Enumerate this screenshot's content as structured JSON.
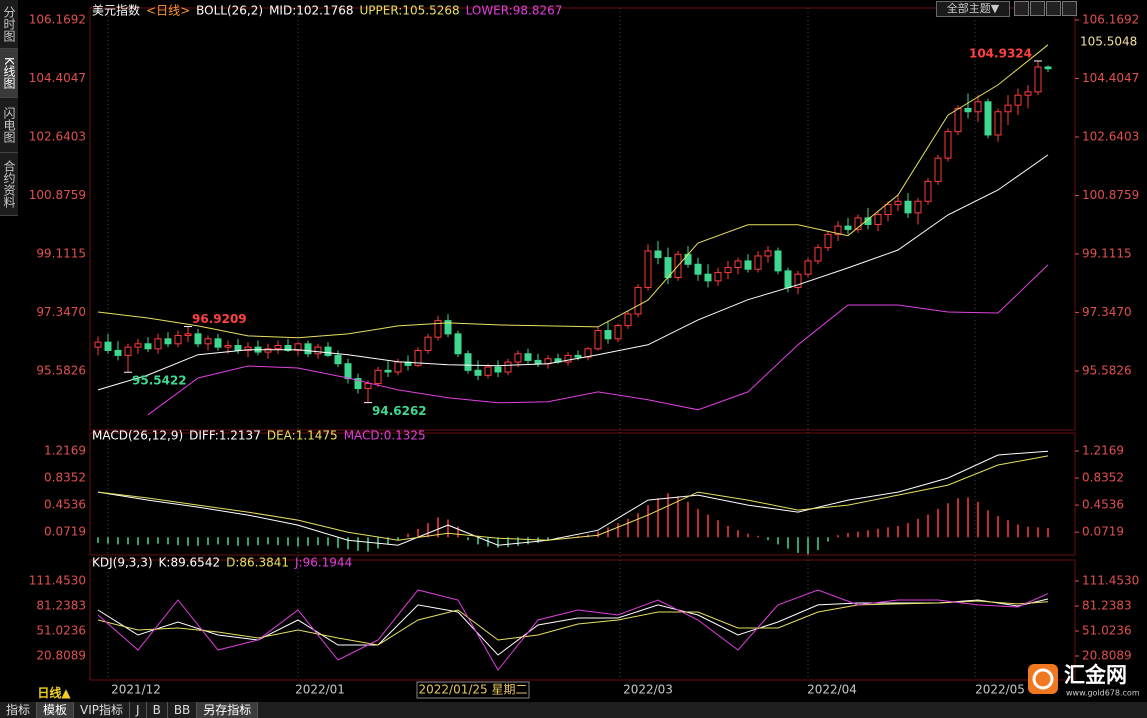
{
  "sidebar": [
    "分时图",
    "K线图",
    "闪电图",
    "合约资料"
  ],
  "theme_button": "全部主题▼",
  "period": "日线▲",
  "bottom_tabs": [
    "指标",
    "模板",
    "VIP指标",
    "J",
    "B",
    "BB",
    "另存指标"
  ],
  "logo": {
    "name": "汇金网",
    "url": "www.gold678.com"
  },
  "x_labels": [
    "2021/12",
    "2022/01",
    "2022/03",
    "2022/04",
    "2022/05"
  ],
  "crosshair_date": "2022/01/25 星期二",
  "chart_data": [
    {
      "type": "candlestick",
      "legend": [
        {
          "text": "美元指数",
          "color": "#ffffff"
        },
        {
          "text": "<日线>",
          "color": "#ff9933"
        },
        {
          "text": "BOLL(26,2)",
          "color": "#ffffff"
        },
        {
          "text": "MID:102.1768",
          "color": "#ffffff"
        },
        {
          "text": "UPPER:105.5268",
          "color": "#e8e060"
        },
        {
          "text": "LOWER:98.8267",
          "color": "#e040e0"
        }
      ],
      "up_color": "#ff3c3c",
      "down_color": "#40d890",
      "xlim": [
        -0.8,
        97.7
      ],
      "ylim": [
        93.8,
        106.53
      ],
      "yticks": [
        106.1692,
        104.4047,
        102.6403,
        100.8759,
        99.1115,
        {
          "value": 97.347,
          "label": "97.3470"
        },
        95.5826
      ],
      "last_price_label": 105.5048,
      "candles": [
        [
          96.3,
          96.62,
          96.05,
          96.45
        ],
        [
          96.45,
          96.7,
          96.1,
          96.2
        ],
        [
          96.2,
          96.48,
          95.9,
          96.05
        ],
        [
          96.05,
          96.4,
          95.54,
          96.3
        ],
        [
          96.3,
          96.55,
          96.1,
          96.4
        ],
        [
          96.4,
          96.6,
          96.15,
          96.25
        ],
        [
          96.25,
          96.7,
          96.1,
          96.55
        ],
        [
          96.55,
          96.75,
          96.3,
          96.4
        ],
        [
          96.4,
          96.8,
          96.3,
          96.65
        ],
        [
          96.65,
          96.92,
          96.45,
          96.7
        ],
        [
          96.7,
          96.85,
          96.3,
          96.4
        ],
        [
          96.4,
          96.65,
          96.2,
          96.55
        ],
        [
          96.55,
          96.7,
          96.2,
          96.3
        ],
        [
          96.3,
          96.5,
          96.1,
          96.35
        ],
        [
          96.35,
          96.55,
          96.1,
          96.2
        ],
        [
          96.2,
          96.45,
          96.0,
          96.3
        ],
        [
          96.3,
          96.5,
          96.05,
          96.15
        ],
        [
          96.15,
          96.4,
          95.95,
          96.25
        ],
        [
          96.25,
          96.5,
          96.1,
          96.35
        ],
        [
          96.35,
          96.55,
          96.15,
          96.2
        ],
        [
          96.2,
          96.45,
          96.05,
          96.4
        ],
        [
          96.4,
          96.5,
          96.0,
          96.1
        ],
        [
          96.1,
          96.4,
          95.95,
          96.3
        ],
        [
          96.3,
          96.45,
          96.0,
          96.05
        ],
        [
          96.05,
          96.2,
          95.7,
          95.8
        ],
        [
          95.8,
          95.95,
          95.2,
          95.35
        ],
        [
          95.35,
          95.5,
          94.9,
          95.05
        ],
        [
          95.05,
          95.3,
          94.63,
          95.2
        ],
        [
          95.2,
          95.7,
          95.1,
          95.6
        ],
        [
          95.6,
          95.9,
          95.4,
          95.55
        ],
        [
          95.55,
          95.95,
          95.45,
          95.85
        ],
        [
          95.85,
          96.05,
          95.6,
          95.75
        ],
        [
          95.75,
          96.3,
          95.7,
          96.2
        ],
        [
          96.2,
          96.7,
          96.1,
          96.6
        ],
        [
          96.6,
          97.25,
          96.5,
          97.1
        ],
        [
          97.1,
          97.3,
          96.6,
          96.7
        ],
        [
          96.7,
          96.8,
          96.0,
          96.1
        ],
        [
          96.1,
          96.2,
          95.5,
          95.6
        ],
        [
          95.6,
          95.9,
          95.3,
          95.45
        ],
        [
          95.45,
          95.8,
          95.35,
          95.7
        ],
        [
          95.7,
          95.9,
          95.4,
          95.55
        ],
        [
          95.55,
          95.95,
          95.45,
          95.85
        ],
        [
          95.85,
          96.2,
          95.7,
          96.1
        ],
        [
          96.1,
          96.25,
          95.8,
          95.9
        ],
        [
          95.9,
          96.1,
          95.7,
          95.8
        ],
        [
          95.8,
          96.05,
          95.65,
          95.95
        ],
        [
          95.95,
          96.1,
          95.8,
          95.85
        ],
        [
          95.85,
          96.15,
          95.75,
          96.05
        ],
        [
          96.05,
          96.2,
          95.9,
          96.0
        ],
        [
          96.0,
          96.3,
          95.9,
          96.25
        ],
        [
          96.25,
          96.9,
          96.2,
          96.8
        ],
        [
          96.8,
          97.1,
          96.4,
          96.55
        ],
        [
          96.55,
          97.0,
          96.45,
          96.95
        ],
        [
          96.95,
          97.4,
          96.85,
          97.3
        ],
        [
          97.3,
          98.2,
          97.2,
          98.1
        ],
        [
          98.1,
          99.4,
          98.0,
          99.2
        ],
        [
          99.2,
          99.5,
          98.8,
          99.0
        ],
        [
          99.0,
          99.3,
          98.2,
          98.4
        ],
        [
          98.4,
          99.2,
          98.3,
          99.1
        ],
        [
          99.1,
          99.35,
          98.7,
          98.8
        ],
        [
          98.8,
          99.0,
          98.3,
          98.5
        ],
        [
          98.5,
          98.8,
          98.1,
          98.3
        ],
        [
          98.3,
          98.7,
          98.15,
          98.55
        ],
        [
          98.55,
          98.9,
          98.35,
          98.7
        ],
        [
          98.7,
          99.0,
          98.5,
          98.9
        ],
        [
          98.9,
          99.1,
          98.55,
          98.65
        ],
        [
          98.65,
          99.2,
          98.55,
          99.05
        ],
        [
          99.05,
          99.35,
          98.85,
          99.2
        ],
        [
          99.2,
          99.3,
          98.5,
          98.6
        ],
        [
          98.6,
          98.7,
          97.95,
          98.1
        ],
        [
          98.1,
          98.6,
          97.9,
          98.5
        ],
        [
          98.5,
          99.0,
          98.4,
          98.9
        ],
        [
          98.9,
          99.4,
          98.8,
          99.3
        ],
        [
          99.3,
          99.8,
          99.2,
          99.7
        ],
        [
          99.7,
          100.1,
          99.5,
          99.95
        ],
        [
          99.95,
          100.2,
          99.7,
          99.85
        ],
        [
          99.85,
          100.3,
          99.75,
          100.2
        ],
        [
          100.2,
          100.5,
          99.85,
          100.0
        ],
        [
          100.0,
          100.4,
          99.8,
          100.3
        ],
        [
          100.3,
          100.7,
          100.1,
          100.6
        ],
        [
          100.6,
          100.9,
          100.4,
          100.7
        ],
        [
          100.7,
          100.95,
          100.2,
          100.35
        ],
        [
          100.35,
          100.8,
          100.0,
          100.7
        ],
        [
          100.7,
          101.4,
          100.6,
          101.3
        ],
        [
          101.3,
          102.1,
          101.2,
          102.0
        ],
        [
          102.0,
          102.9,
          101.9,
          102.8
        ],
        [
          102.8,
          103.6,
          102.7,
          103.5
        ],
        [
          103.5,
          103.95,
          103.2,
          103.4
        ],
        [
          103.4,
          103.9,
          103.1,
          103.7
        ],
        [
          103.7,
          103.8,
          102.6,
          102.7
        ],
        [
          102.7,
          103.5,
          102.5,
          103.4
        ],
        [
          103.4,
          103.9,
          103.0,
          103.6
        ],
        [
          103.6,
          104.1,
          103.3,
          103.9
        ],
        [
          103.9,
          104.2,
          103.5,
          104.0
        ],
        [
          104.0,
          104.93,
          103.9,
          104.75
        ],
        [
          104.75,
          104.8,
          104.6,
          104.7
        ]
      ],
      "x": [
        0,
        5,
        10,
        15,
        20,
        25,
        30,
        35,
        40,
        45,
        50,
        55,
        60,
        65,
        70,
        75,
        80,
        85,
        90,
        95
      ],
      "series": [
        {
          "color": "#e8e060",
          "values": [
            97.36,
            97.18,
            96.94,
            96.64,
            96.58,
            96.7,
            96.94,
            97.03,
            96.97,
            96.94,
            96.91,
            97.72,
            99.44,
            99.99,
            99.99,
            99.66,
            100.89,
            103.3,
            104.21,
            105.42
          ]
        },
        {
          "color": "#ffffff",
          "values": [
            95.01,
            95.46,
            96.07,
            96.22,
            96.22,
            96.07,
            95.86,
            95.77,
            95.74,
            95.8,
            96.07,
            96.37,
            97.12,
            97.73,
            98.18,
            98.69,
            99.23,
            100.29,
            101.04,
            102.1
          ]
        },
        {
          "color": "#e040e0",
          "values": [
            null,
            94.26,
            95.37,
            95.73,
            95.67,
            95.37,
            95.01,
            94.77,
            94.62,
            94.65,
            94.95,
            94.71,
            94.41,
            94.95,
            96.37,
            97.57,
            97.57,
            97.36,
            97.33,
            98.78
          ]
        }
      ],
      "high_labels": [
        {
          "x": 9,
          "value": 96.9209
        },
        {
          "x": 94,
          "value": 104.9324
        }
      ],
      "low_labels": [
        {
          "x": 3,
          "value": 95.5422
        },
        {
          "x": 27,
          "value": 94.6262
        }
      ]
    },
    {
      "type": "macd",
      "legend": [
        {
          "text": "MACD(26,12,9)",
          "color": "#ffffff"
        },
        {
          "text": "DIFF:1.2137",
          "color": "#ffffff"
        },
        {
          "text": "DEA:1.1475",
          "color": "#e8e060"
        },
        {
          "text": "MACD:0.1325",
          "color": "#e040e0"
        }
      ],
      "xlim": [
        -0.8,
        97.7
      ],
      "ylim": [
        -0.25,
        1.47
      ],
      "yticks": [
        1.2169,
        0.8352,
        0.4536,
        0.0719
      ],
      "up_color": "#ff3c3c",
      "down_color": "#40d890",
      "histogram": [
        -0.08,
        -0.09,
        -0.1,
        -0.1,
        -0.11,
        -0.1,
        -0.09,
        -0.1,
        -0.11,
        -0.12,
        -0.12,
        -0.11,
        -0.1,
        -0.11,
        -0.12,
        -0.12,
        -0.11,
        -0.1,
        -0.11,
        -0.12,
        -0.13,
        -0.12,
        -0.11,
        -0.12,
        -0.15,
        -0.17,
        -0.19,
        -0.2,
        -0.16,
        -0.1,
        -0.04,
        0.05,
        0.12,
        0.2,
        0.28,
        0.25,
        0.15,
        -0.04,
        -0.1,
        -0.13,
        -0.15,
        -0.14,
        -0.12,
        -0.1,
        -0.08,
        -0.05,
        -0.02,
        0.01,
        0.02,
        0.04,
        0.08,
        0.14,
        0.2,
        0.26,
        0.34,
        0.45,
        0.55,
        0.62,
        0.58,
        0.5,
        0.4,
        0.32,
        0.24,
        0.16,
        0.1,
        0.05,
        0.02,
        -0.04,
        -0.1,
        -0.16,
        -0.22,
        -0.24,
        -0.18,
        -0.06,
        0.03,
        0.06,
        0.08,
        0.1,
        0.12,
        0.14,
        0.16,
        0.2,
        0.26,
        0.32,
        0.4,
        0.48,
        0.55,
        0.56,
        0.5,
        0.38,
        0.3,
        0.24,
        0.18,
        0.15,
        0.14,
        0.1325
      ],
      "x": [
        0,
        5,
        10,
        15,
        20,
        25,
        30,
        35,
        40,
        45,
        50,
        55,
        60,
        65,
        70,
        75,
        80,
        85,
        90,
        95
      ],
      "series": [
        {
          "color": "#ffffff",
          "values": [
            0.637,
            0.524,
            0.425,
            0.312,
            0.171,
            -0.041,
            -0.112,
            0.171,
            -0.112,
            -0.041,
            0.1,
            0.524,
            0.595,
            0.454,
            0.355,
            0.524,
            0.637,
            0.835,
            1.16,
            1.2137
          ]
        },
        {
          "color": "#e8e060",
          "values": [
            0.637,
            0.553,
            0.454,
            0.355,
            0.242,
            0.072,
            -0.041,
            0.058,
            -0.013,
            -0.041,
            0.029,
            0.312,
            0.637,
            0.524,
            0.383,
            0.454,
            0.595,
            0.736,
            1.019,
            1.1475
          ]
        }
      ]
    },
    {
      "type": "line",
      "legend": [
        {
          "text": "KDJ(9,3,3)",
          "color": "#ffffff"
        },
        {
          "text": "K:89.6542",
          "color": "#ffffff"
        },
        {
          "text": "D:86.3841",
          "color": "#e8e060"
        },
        {
          "text": "J:96.1944",
          "color": "#e040e0"
        }
      ],
      "xlim": [
        -0.8,
        97.7
      ],
      "ylim": [
        -8.2,
        136.8
      ],
      "yticks": [
        {
          "value": 111.453,
          "label": "111.4530"
        },
        81.2383,
        51.0236,
        20.8089
      ],
      "x": [
        0,
        4,
        8,
        12,
        16,
        20,
        24,
        28,
        32,
        36,
        40,
        44,
        48,
        52,
        56,
        60,
        64,
        68,
        72,
        76,
        80,
        84,
        88,
        92,
        95
      ],
      "series": [
        {
          "color": "#ffffff",
          "values": [
            76.4,
            46.2,
            61.9,
            46.2,
            40.1,
            64.3,
            34.1,
            34.1,
            82.5,
            74.0,
            22.0,
            58.3,
            66.7,
            66.7,
            82.5,
            70.4,
            46.2,
            61.9,
            82.5,
            84.9,
            84.9,
            84.9,
            88.5,
            81.2,
            89.6542
          ]
        },
        {
          "color": "#e8e060",
          "values": [
            64.3,
            52.2,
            54.6,
            49.8,
            42.6,
            52.2,
            42.6,
            34.1,
            64.3,
            76.4,
            40.1,
            46.2,
            59.5,
            64.3,
            74.0,
            74.0,
            54.6,
            54.6,
            74.0,
            82.5,
            83.7,
            84.9,
            87.3,
            83.7,
            86.3841
          ]
        },
        {
          "color": "#e040e0",
          "values": [
            70.4,
            28.1,
            88.5,
            28.1,
            40.1,
            76.4,
            16.0,
            40.1,
            100.6,
            88.5,
            3.9,
            64.3,
            76.4,
            70.4,
            88.5,
            64.3,
            28.1,
            82.5,
            100.6,
            82.5,
            88.5,
            88.5,
            82.5,
            80.0,
            96.1944
          ]
        }
      ]
    }
  ]
}
